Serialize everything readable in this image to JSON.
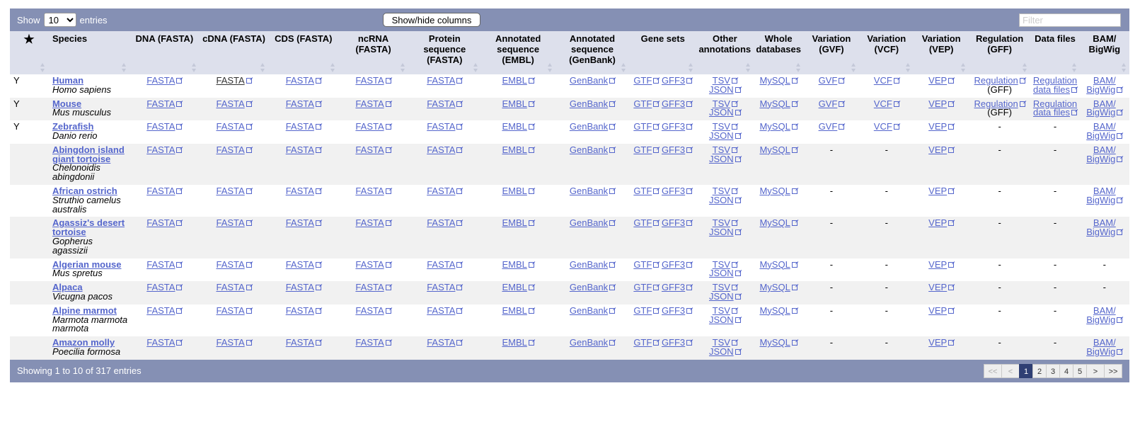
{
  "controls": {
    "show_label": "Show",
    "entries_label": "entries",
    "page_size": "10",
    "columns_button": "Show/hide columns",
    "filter_placeholder": "Filter"
  },
  "columns": [
    {
      "key": "fav",
      "label": "★"
    },
    {
      "key": "species",
      "label": "Species"
    },
    {
      "key": "dna",
      "label": "DNA (FASTA)"
    },
    {
      "key": "cdna",
      "label": "cDNA (FASTA)"
    },
    {
      "key": "cds",
      "label": "CDS (FASTA)"
    },
    {
      "key": "ncrna",
      "label": "ncRNA (FASTA)"
    },
    {
      "key": "protein",
      "label": "Protein sequence (FASTA)"
    },
    {
      "key": "embl",
      "label": "Annotated sequence (EMBL)"
    },
    {
      "key": "genbank",
      "label": "Annotated sequence (GenBank)"
    },
    {
      "key": "genesets",
      "label": "Gene sets"
    },
    {
      "key": "other",
      "label": "Other annotations"
    },
    {
      "key": "whole",
      "label": "Whole databases"
    },
    {
      "key": "gvf",
      "label": "Variation (GVF)"
    },
    {
      "key": "vcf",
      "label": "Variation (VCF)"
    },
    {
      "key": "vep",
      "label": "Variation (VEP)"
    },
    {
      "key": "reg",
      "label": "Regulation (GFF)"
    },
    {
      "key": "datafiles",
      "label": "Data files"
    },
    {
      "key": "bam",
      "label": "BAM/ BigWig"
    }
  ],
  "rows": [
    {
      "fav": "Y",
      "name": "Human",
      "sci": "Homo sapiens",
      "gvf": "GVF",
      "vcf": "VCF",
      "reg": "Regulation",
      "reg_note": "(GFF)",
      "datafiles": "Regulation data files",
      "bam": "BAM/ BigWig"
    },
    {
      "fav": "Y",
      "name": "Mouse",
      "sci": "Mus musculus",
      "gvf": "GVF",
      "vcf": "VCF",
      "reg": "Regulation",
      "reg_note": "(GFF)",
      "datafiles": "Regulation data files",
      "bam": "BAM/ BigWig"
    },
    {
      "fav": "Y",
      "name": "Zebrafish",
      "sci": "Danio rerio",
      "gvf": "GVF",
      "vcf": "VCF",
      "reg": "-",
      "reg_note": "",
      "datafiles": "-",
      "bam": "BAM/ BigWig"
    },
    {
      "fav": "",
      "name": "Abingdon island giant tortoise",
      "sci": "Chelonoidis abingdonii",
      "gvf": "-",
      "vcf": "-",
      "reg": "-",
      "reg_note": "",
      "datafiles": "-",
      "bam": "BAM/ BigWig"
    },
    {
      "fav": "",
      "name": "African ostrich",
      "sci": "Struthio camelus australis",
      "gvf": "-",
      "vcf": "-",
      "reg": "-",
      "reg_note": "",
      "datafiles": "-",
      "bam": "BAM/ BigWig"
    },
    {
      "fav": "",
      "name": "Agassiz's desert tortoise",
      "sci": "Gopherus agassizii",
      "gvf": "-",
      "vcf": "-",
      "reg": "-",
      "reg_note": "",
      "datafiles": "-",
      "bam": "BAM/ BigWig"
    },
    {
      "fav": "",
      "name": "Algerian mouse",
      "sci": "Mus spretus",
      "gvf": "-",
      "vcf": "-",
      "reg": "-",
      "reg_note": "",
      "datafiles": "-",
      "bam": "-"
    },
    {
      "fav": "",
      "name": "Alpaca",
      "sci": "Vicugna pacos",
      "gvf": "-",
      "vcf": "-",
      "reg": "-",
      "reg_note": "",
      "datafiles": "-",
      "bam": "-"
    },
    {
      "fav": "",
      "name": "Alpine marmot",
      "sci": "Marmota marmota marmota",
      "gvf": "-",
      "vcf": "-",
      "reg": "-",
      "reg_note": "",
      "datafiles": "-",
      "bam": "BAM/ BigWig"
    },
    {
      "fav": "",
      "name": "Amazon molly",
      "sci": "Poecilia formosa",
      "gvf": "-",
      "vcf": "-",
      "reg": "-",
      "reg_note": "",
      "datafiles": "-",
      "bam": "BAM/ BigWig"
    }
  ],
  "links": {
    "fasta": "FASTA",
    "embl": "EMBL",
    "genbank": "GenBank",
    "gtf": "GTF",
    "gff3": "GFF3",
    "tsv": "TSV",
    "json": "JSON",
    "mysql": "MySQL",
    "vep": "VEP"
  },
  "footer": {
    "info": "Showing 1 to 10 of 317 entries",
    "pages": [
      "<<",
      "<",
      "1",
      "2",
      "3",
      "4",
      "5",
      ">",
      ">>"
    ],
    "current_page": "1"
  },
  "colors": {
    "bar": "#8590b4",
    "header": "#dde0ec",
    "link": "#5566cc",
    "current_page": "#2f3f73"
  }
}
